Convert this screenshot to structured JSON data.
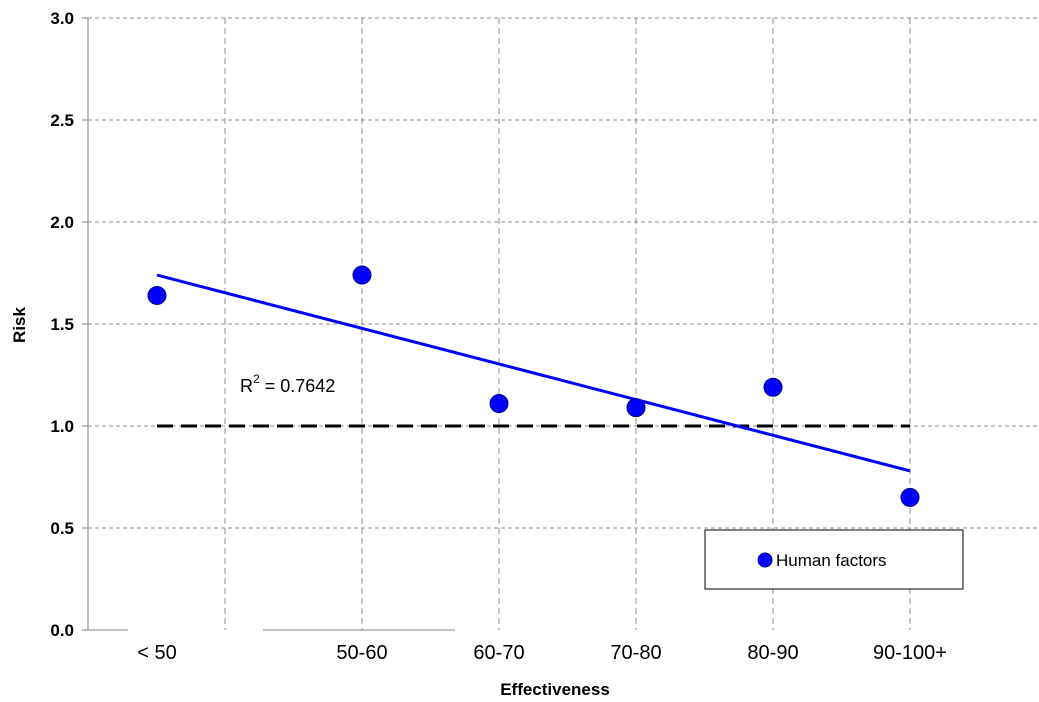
{
  "chart_data": {
    "type": "scatter",
    "xlabel": "Effectiveness",
    "ylabel": "Risk",
    "ylim": [
      0,
      3
    ],
    "yticks": [
      "0.0",
      "0.5",
      "1.0",
      "1.5",
      "2.0",
      "2.5",
      "3.0"
    ],
    "categories": [
      "< 50",
      "50-60",
      "60-70",
      "70-80",
      "80-90",
      "90-100+"
    ],
    "series": [
      {
        "name": "Human factors",
        "color": "#0000ff",
        "values": [
          1.64,
          1.74,
          1.11,
          1.09,
          1.19,
          0.65
        ]
      }
    ],
    "trendline": {
      "type": "linear",
      "color": "#0000ff",
      "start": 1.74,
      "end": 0.78,
      "label_prefix": "R",
      "label_sup": "2",
      "label_suffix": " = 0.7642"
    },
    "reference_line": {
      "y": 1.0,
      "style": "dashed",
      "color": "#000000"
    },
    "grid": true,
    "legend_position": "bottom-right"
  }
}
